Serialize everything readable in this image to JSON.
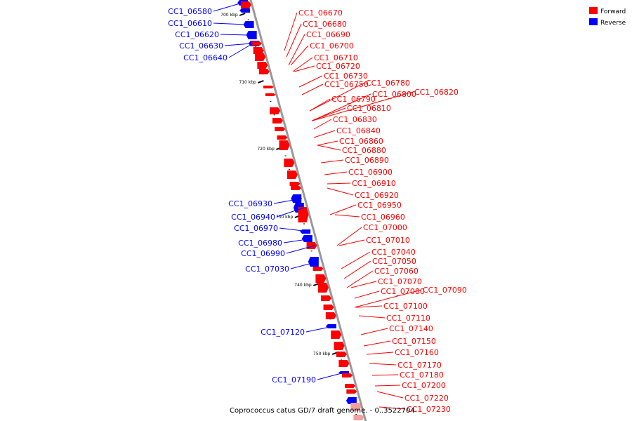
{
  "caption": "Coprococcus catus GD/7 draft genome. - 0..3522704",
  "legend": {
    "placement": "top-right",
    "items": [
      {
        "label": "Forward",
        "color": "#ff0000"
      },
      {
        "label": "Reverse",
        "color": "#0000ff"
      }
    ]
  },
  "colors": {
    "forward": "#ff0000",
    "reverse": "#0000ff",
    "backbone": "#999999",
    "forward_faded": "#f4a0a0"
  },
  "ticks": [
    "700 kbp",
    "710 kbp",
    "720 kbp",
    "730 kbp",
    "740 kbp",
    "750 kbp"
  ],
  "reverse_labels": [
    "CC1_06580",
    "CC1_06610",
    "CC1_06620",
    "CC1_06630",
    "CC1_06640",
    "CC1_06930",
    "CC1_06940",
    "CC1_06970",
    "CC1_06980",
    "CC1_06990",
    "CC1_07030",
    "CC1_07120",
    "CC1_07190"
  ],
  "forward_labels": [
    "CC1_06670",
    "CC1_06680",
    "CC1_06690",
    "CC1_06700",
    "CC1_06710",
    "CC1_06720",
    "CC1_06730",
    "CC1_06750",
    "CC1_06780",
    "CC1_06800",
    "CC1_06820",
    "CC1_06790",
    "CC1_06810",
    "CC1_06830",
    "CC1_06840",
    "CC1_06860",
    "CC1_06880",
    "CC1_06890",
    "CC1_06900",
    "CC1_06910",
    "CC1_06920",
    "CC1_06950",
    "CC1_06960",
    "CC1_07000",
    "CC1_07010",
    "CC1_07040",
    "CC1_07050",
    "CC1_07060",
    "CC1_07070",
    "CC1_07080",
    "CC1_07090",
    "CC1_07100",
    "CC1_07110",
    "CC1_07140",
    "CC1_07150",
    "CC1_07160",
    "CC1_07170",
    "CC1_07180",
    "CC1_07200",
    "CC1_07220",
    "CC1_07230"
  ]
}
